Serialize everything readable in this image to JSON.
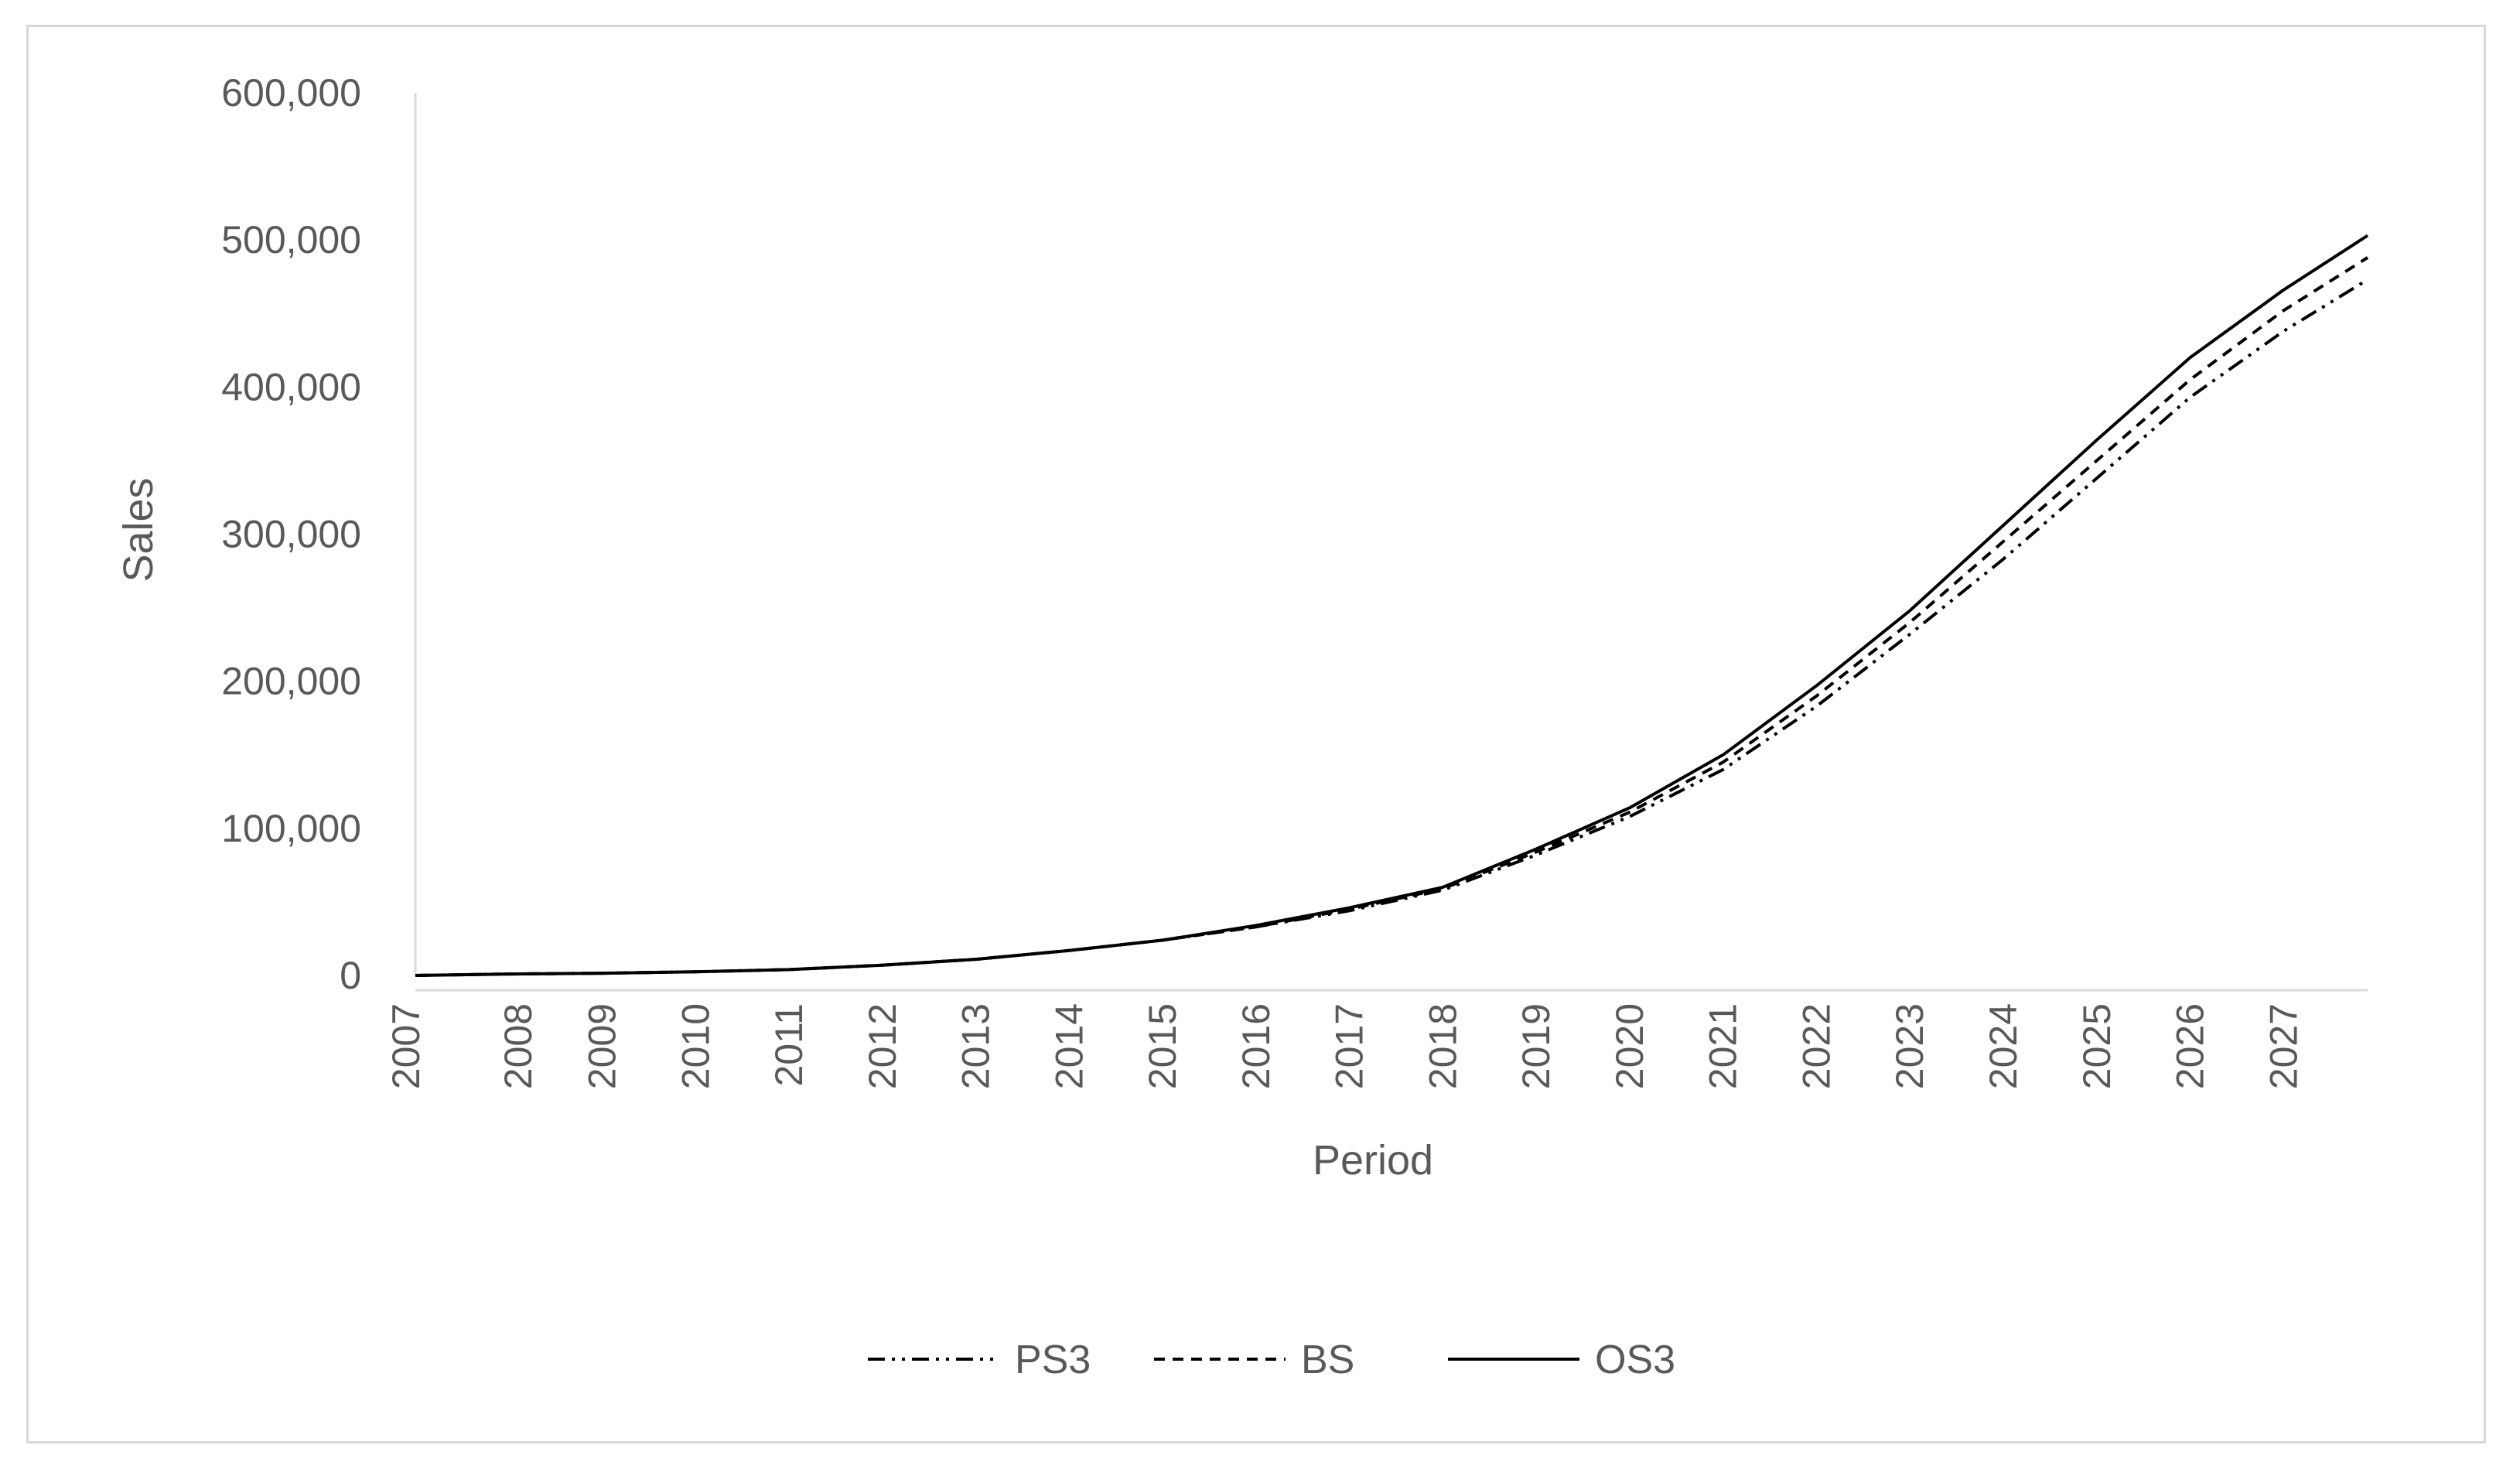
{
  "chart_data": {
    "type": "line",
    "title": "",
    "xlabel": "Period",
    "ylabel": "Sales",
    "ylim": [
      0,
      600000
    ],
    "yticks": [
      0,
      100000,
      200000,
      300000,
      400000,
      500000,
      600000
    ],
    "ytick_labels": [
      "0",
      "100,000",
      "200,000",
      "300,000",
      "400,000",
      "500,000",
      "600,000"
    ],
    "categories": [
      "2007",
      "2008",
      "2009",
      "2010",
      "2011",
      "2012",
      "2013",
      "2014",
      "2015",
      "2016",
      "2017",
      "2018",
      "2019",
      "2020",
      "2021",
      "2022",
      "2023",
      "2024",
      "2025",
      "2026",
      "2027"
    ],
    "grid": false,
    "legend_position": "bottom",
    "x": [
      2007,
      2008,
      2009,
      2010,
      2011,
      2012,
      2013,
      2014,
      2015,
      2016,
      2017,
      2018,
      2019,
      2020,
      2021,
      2022,
      2023,
      2024,
      2025,
      2026,
      2027,
      2027.9
    ],
    "series": [
      {
        "name": "PS3",
        "style": "dash-dot-dot",
        "color": "#000000",
        "values": [
          0,
          1000,
          1500,
          2500,
          4000,
          7000,
          11000,
          17000,
          24000,
          33000,
          44000,
          58000,
          82000,
          108000,
          140000,
          183000,
          232000,
          283000,
          338000,
          393000,
          438000,
          473000
        ]
      },
      {
        "name": "BS",
        "style": "dashed",
        "color": "#000000",
        "values": [
          0,
          1000,
          1500,
          2500,
          4000,
          7000,
          11000,
          17000,
          24000,
          33000,
          45000,
          59000,
          84000,
          111000,
          145000,
          190000,
          240000,
          295000,
          350000,
          405000,
          452000,
          488000
        ]
      },
      {
        "name": "OS3",
        "style": "solid",
        "color": "#000000",
        "values": [
          0,
          1000,
          1500,
          2500,
          4000,
          7000,
          11000,
          17000,
          24000,
          34000,
          46000,
          60000,
          86000,
          114000,
          150000,
          197000,
          248000,
          306000,
          364000,
          420000,
          466000,
          503000
        ]
      }
    ]
  }
}
